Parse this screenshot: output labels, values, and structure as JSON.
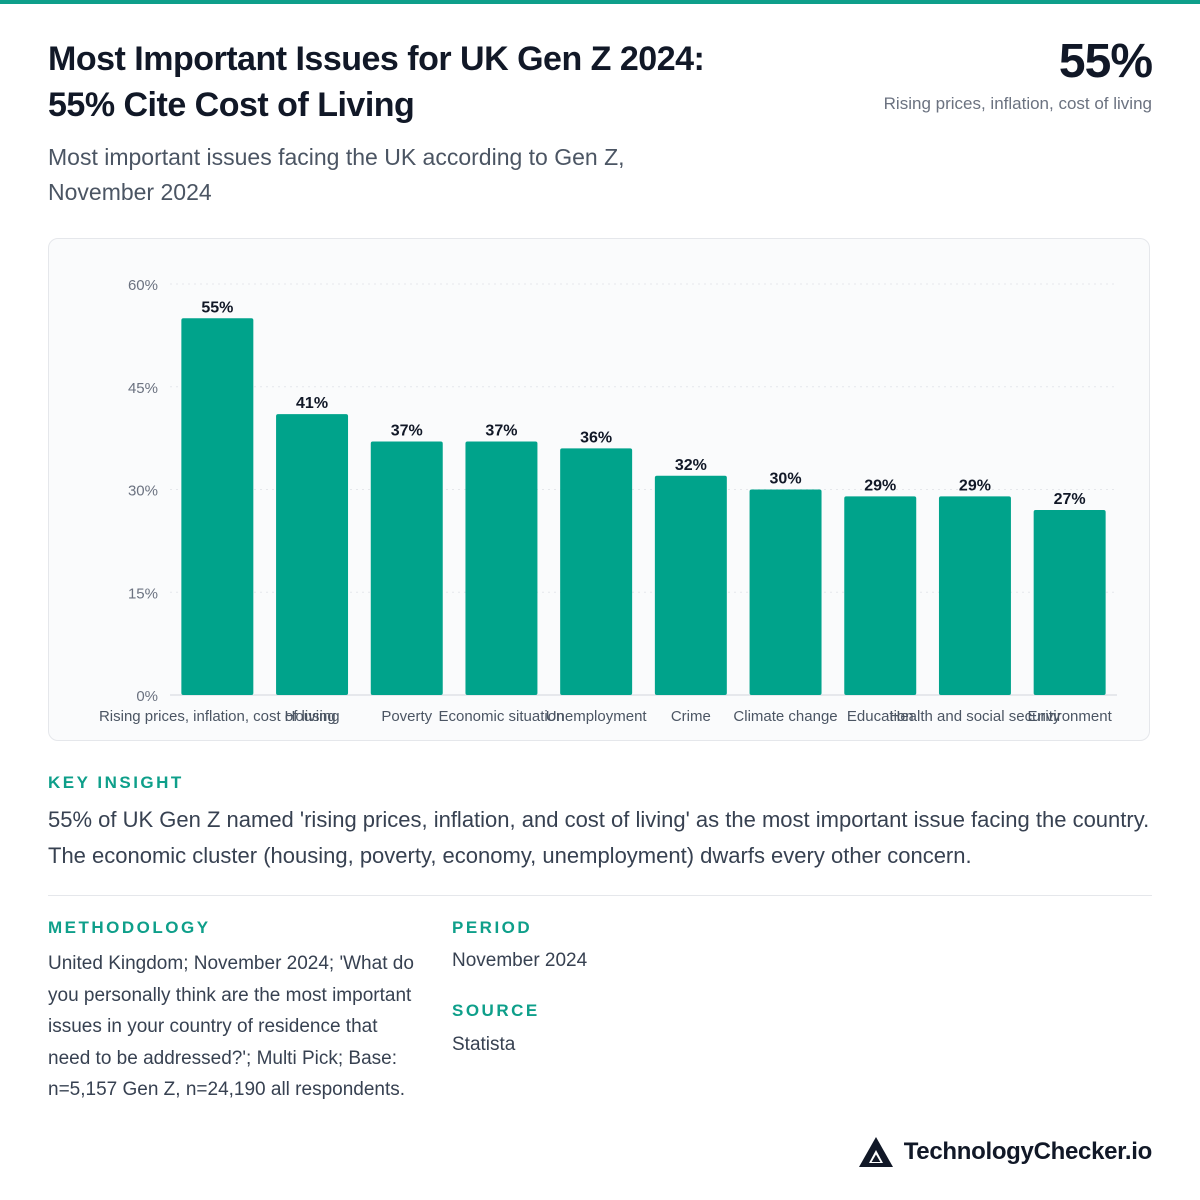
{
  "header": {
    "title_line1": "Most Important Issues for UK Gen Z 2024:",
    "title_line2": "55% Cite Cost of Living",
    "subtitle_line1": "Most important issues facing the UK according to Gen Z,",
    "subtitle_line2": "November 2024"
  },
  "kpi": {
    "value": "55%",
    "label": "Rising prices, inflation, cost of living"
  },
  "colors": {
    "accent": "#0e9f8a",
    "bar": "#00a38b"
  },
  "chart_data": {
    "type": "bar",
    "categories": [
      "Rising prices, inflation, cost of living",
      "Housing",
      "Poverty",
      "Economic situation",
      "Unemployment",
      "Crime",
      "Climate change",
      "Education",
      "Health and social security",
      "Environment"
    ],
    "values": [
      55,
      41,
      37,
      37,
      36,
      32,
      30,
      29,
      29,
      27
    ],
    "value_labels": [
      "55%",
      "41%",
      "37%",
      "37%",
      "36%",
      "32%",
      "30%",
      "29%",
      "29%",
      "27%"
    ],
    "ylim": [
      0,
      60
    ],
    "yticks": [
      0,
      15,
      30,
      45,
      60
    ],
    "ytick_labels": [
      "0%",
      "15%",
      "30%",
      "45%",
      "60%"
    ],
    "grid": true,
    "title": "",
    "xlabel": "",
    "ylabel": ""
  },
  "insight": {
    "label": "KEY INSIGHT",
    "text": "55% of UK Gen Z named 'rising prices, inflation, and cost of living' as the most important issue facing the country. The economic cluster (housing, poverty, economy, unemployment) dwarfs every other concern."
  },
  "methodology": {
    "label": "METHODOLOGY",
    "text": "United Kingdom; November 2024; 'What do you personally think are the most important issues in your country of residence that need to be addressed?'; Multi Pick; Base: n=5,157 Gen Z, n=24,190 all respondents."
  },
  "period": {
    "label": "PERIOD",
    "value": "November 2024"
  },
  "source": {
    "label": "SOURCE",
    "value": "Statista"
  },
  "brand": {
    "name": "TechnologyChecker.io",
    "logo_icon": "triangle-logo-icon"
  }
}
